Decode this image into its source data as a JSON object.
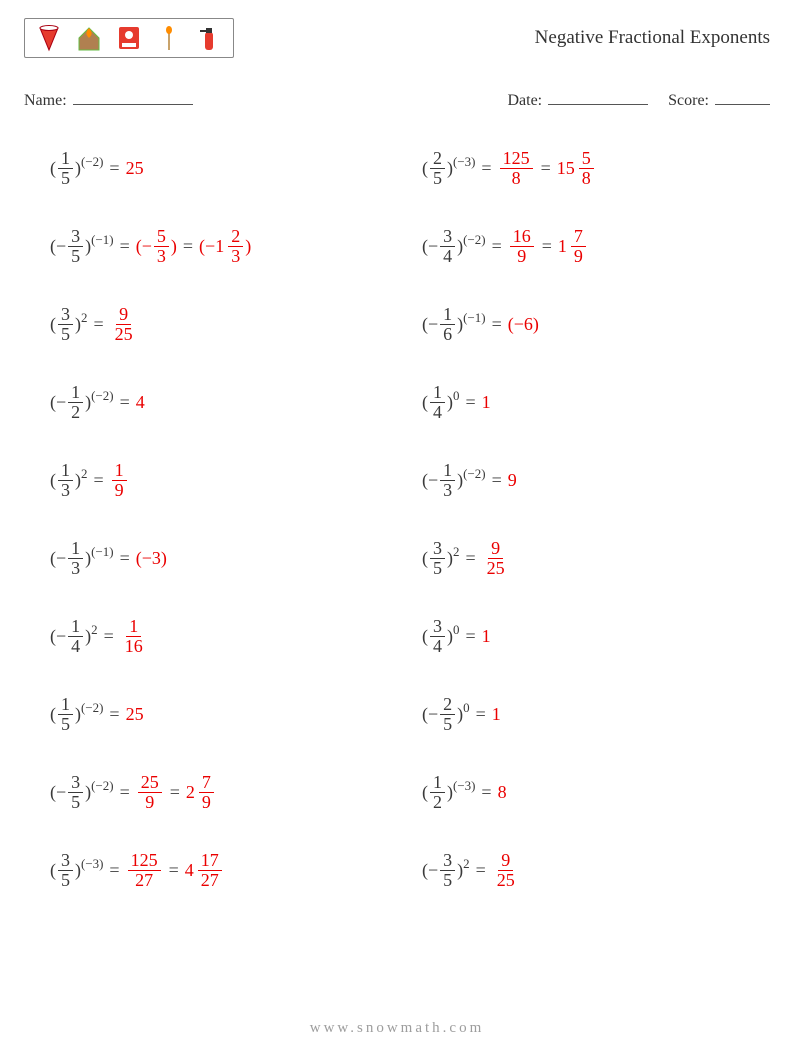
{
  "header": {
    "title": "Negative Fractional Exponents",
    "icons": [
      "bucket-icon",
      "fire-house-icon",
      "alarm-icon",
      "match-icon",
      "extinguisher-icon"
    ]
  },
  "info": {
    "name_label": "Name:",
    "date_label": "Date:",
    "score_label": "Score:"
  },
  "colors": {
    "answer": "#ea0000",
    "text": "#3a3a3a",
    "divider": "#666"
  },
  "problems_left": [
    {
      "sign": "",
      "num": "1",
      "den": "5",
      "exp": "(−2)",
      "answers": [
        {
          "type": "int",
          "v": "25"
        }
      ]
    },
    {
      "sign": "−",
      "num": "3",
      "den": "5",
      "exp": "(−1)",
      "answers": [
        {
          "type": "paren_neg_frac",
          "num": "5",
          "den": "3"
        },
        {
          "type": "paren_neg_mixed",
          "whole": "1",
          "num": "2",
          "den": "3"
        }
      ]
    },
    {
      "sign": "",
      "num": "3",
      "den": "5",
      "exp": "2",
      "answers": [
        {
          "type": "frac",
          "num": "9",
          "den": "25"
        }
      ]
    },
    {
      "sign": "−",
      "num": "1",
      "den": "2",
      "exp": "(−2)",
      "answers": [
        {
          "type": "int",
          "v": "4"
        }
      ]
    },
    {
      "sign": "",
      "num": "1",
      "den": "3",
      "exp": "2",
      "answers": [
        {
          "type": "frac",
          "num": "1",
          "den": "9"
        }
      ]
    },
    {
      "sign": "−",
      "num": "1",
      "den": "3",
      "exp": "(−1)",
      "answers": [
        {
          "type": "paren_neg_int",
          "v": "3"
        }
      ]
    },
    {
      "sign": "−",
      "num": "1",
      "den": "4",
      "exp": "2",
      "answers": [
        {
          "type": "frac",
          "num": "1",
          "den": "16"
        }
      ]
    },
    {
      "sign": "",
      "num": "1",
      "den": "5",
      "exp": "(−2)",
      "answers": [
        {
          "type": "int",
          "v": "25"
        }
      ]
    },
    {
      "sign": "−",
      "num": "3",
      "den": "5",
      "exp": "(−2)",
      "answers": [
        {
          "type": "frac",
          "num": "25",
          "den": "9"
        },
        {
          "type": "mixed",
          "whole": "2",
          "num": "7",
          "den": "9"
        }
      ]
    },
    {
      "sign": "",
      "num": "3",
      "den": "5",
      "exp": "(−3)",
      "answers": [
        {
          "type": "frac",
          "num": "125",
          "den": "27"
        },
        {
          "type": "mixed",
          "whole": "4",
          "num": "17",
          "den": "27"
        }
      ]
    }
  ],
  "problems_right": [
    {
      "sign": "",
      "num": "2",
      "den": "5",
      "exp": "(−3)",
      "answers": [
        {
          "type": "frac",
          "num": "125",
          "den": "8"
        },
        {
          "type": "mixed",
          "whole": "15",
          "num": "5",
          "den": "8"
        }
      ]
    },
    {
      "sign": "−",
      "num": "3",
      "den": "4",
      "exp": "(−2)",
      "answers": [
        {
          "type": "frac",
          "num": "16",
          "den": "9"
        },
        {
          "type": "mixed",
          "whole": "1",
          "num": "7",
          "den": "9"
        }
      ]
    },
    {
      "sign": "−",
      "num": "1",
      "den": "6",
      "exp": "(−1)",
      "answers": [
        {
          "type": "paren_neg_int",
          "v": "6"
        }
      ]
    },
    {
      "sign": "",
      "num": "1",
      "den": "4",
      "exp": "0",
      "answers": [
        {
          "type": "int",
          "v": "1"
        }
      ]
    },
    {
      "sign": "−",
      "num": "1",
      "den": "3",
      "exp": "(−2)",
      "answers": [
        {
          "type": "int",
          "v": "9"
        }
      ]
    },
    {
      "sign": "",
      "num": "3",
      "den": "5",
      "exp": "2",
      "answers": [
        {
          "type": "frac",
          "num": "9",
          "den": "25"
        }
      ]
    },
    {
      "sign": "",
      "num": "3",
      "den": "4",
      "exp": "0",
      "answers": [
        {
          "type": "int",
          "v": "1"
        }
      ]
    },
    {
      "sign": "−",
      "num": "2",
      "den": "5",
      "exp": "0",
      "answers": [
        {
          "type": "int",
          "v": "1"
        }
      ]
    },
    {
      "sign": "",
      "num": "1",
      "den": "2",
      "exp": "(−3)",
      "answers": [
        {
          "type": "int",
          "v": "8"
        }
      ]
    },
    {
      "sign": "−",
      "num": "3",
      "den": "5",
      "exp": "2",
      "answers": [
        {
          "type": "frac",
          "num": "9",
          "den": "25"
        }
      ]
    }
  ],
  "footer": "www.snowmath.com"
}
